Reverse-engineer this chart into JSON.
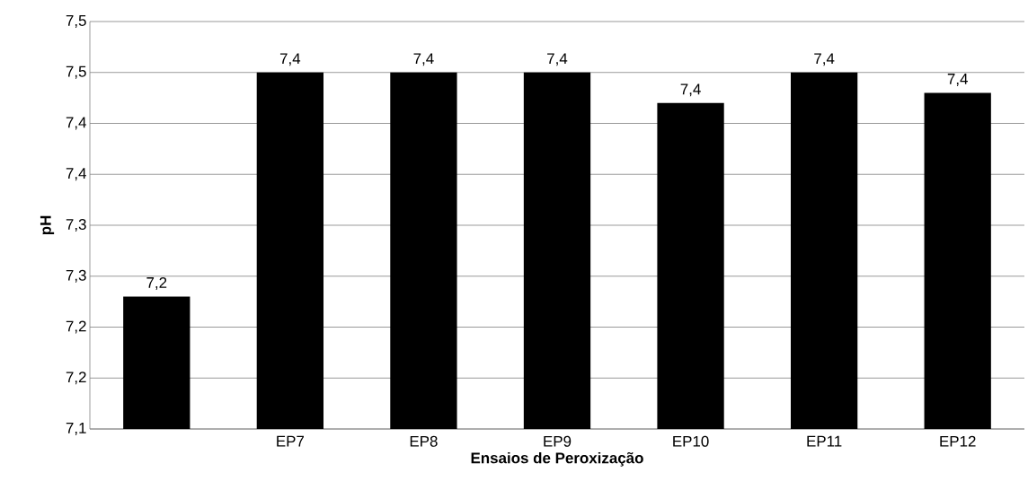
{
  "chart_data": {
    "type": "bar",
    "xlabel": "Ensaios de Peroxização",
    "ylabel": "pH",
    "categories": [
      null,
      "EP7",
      "EP8",
      "EP9",
      "EP10",
      "EP11",
      "EP12"
    ],
    "values": [
      7.23,
      7.45,
      7.45,
      7.45,
      7.42,
      7.45,
      7.43
    ],
    "value_labels": [
      "7,2",
      "7,4",
      "7,4",
      "7,4",
      "7,4",
      "7,4",
      "7,4"
    ],
    "color": "#000000",
    "ylim": [
      7.1,
      7.5
    ],
    "yticks": [
      {
        "value": 7.1,
        "label": "7,1"
      },
      {
        "value": 7.15,
        "label": "7,2"
      },
      {
        "value": 7.2,
        "label": "7,2"
      },
      {
        "value": 7.25,
        "label": "7,3"
      },
      {
        "value": 7.3,
        "label": "7,3"
      },
      {
        "value": 7.35,
        "label": "7,4"
      },
      {
        "value": 7.4,
        "label": "7,4"
      },
      {
        "value": 7.45,
        "label": "7,5"
      },
      {
        "value": 7.5,
        "label": "7,5"
      }
    ],
    "grid": "y"
  }
}
